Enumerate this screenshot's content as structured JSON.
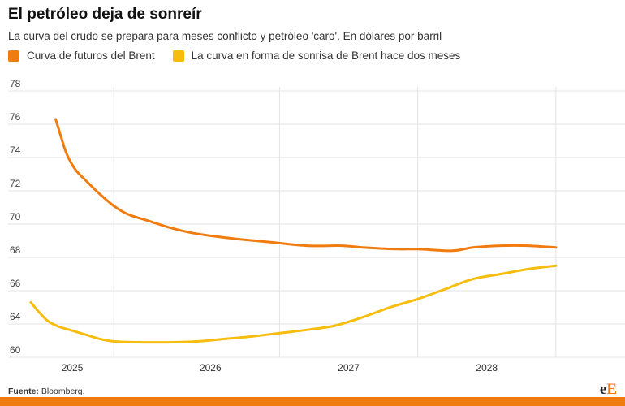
{
  "chart_data": {
    "type": "line",
    "title": "El petróleo deja de sonreír",
    "subtitle": "La curva del crudo se prepara para meses conflicto y petróleo 'caro'. En dólares por barril",
    "y_tick_labels": [
      "60",
      "64",
      "66",
      "68",
      "70",
      "72",
      "74",
      "76",
      "78"
    ],
    "x_tick_labels": [
      {
        "label": "2025",
        "x": 2025.0
      },
      {
        "label": "2026",
        "x": 2026.0
      },
      {
        "label": "2027",
        "x": 2027.0
      },
      {
        "label": "2028",
        "x": 2028.0
      }
    ],
    "xlim": [
      2024.7,
      2029.0
    ],
    "year_gridlines": [
      2025.3,
      2026.5,
      2027.5,
      2028.5
    ],
    "legend_placement": "top-left",
    "grid": true,
    "series": [
      {
        "name": "Curva de futuros del Brent",
        "color": "#f07c0f",
        "points": [
          [
            2024.88,
            76.3
          ],
          [
            2024.92,
            75.2
          ],
          [
            2024.96,
            74.2
          ],
          [
            2025.02,
            73.3
          ],
          [
            2025.1,
            72.6
          ],
          [
            2025.2,
            71.8
          ],
          [
            2025.3,
            71.1
          ],
          [
            2025.4,
            70.6
          ],
          [
            2025.55,
            70.2
          ],
          [
            2025.7,
            69.8
          ],
          [
            2025.85,
            69.5
          ],
          [
            2026.0,
            69.3
          ],
          [
            2026.2,
            69.1
          ],
          [
            2026.45,
            68.9
          ],
          [
            2026.7,
            68.7
          ],
          [
            2026.95,
            68.7
          ],
          [
            2027.1,
            68.6
          ],
          [
            2027.35,
            68.5
          ],
          [
            2027.5,
            68.5
          ],
          [
            2027.75,
            68.4
          ],
          [
            2027.9,
            68.6
          ],
          [
            2028.1,
            68.7
          ],
          [
            2028.3,
            68.7
          ],
          [
            2028.5,
            68.6
          ]
        ]
      },
      {
        "name": "La curva en forma de sonrisa de Brent hace dos meses",
        "color": "#f6bd0e",
        "points": [
          [
            2024.7,
            65.3
          ],
          [
            2024.75,
            64.8
          ],
          [
            2024.82,
            64.2
          ],
          [
            2024.9,
            63.7
          ],
          [
            2025.0,
            63.2
          ],
          [
            2025.1,
            62.7
          ],
          [
            2025.2,
            62.2
          ],
          [
            2025.3,
            61.9
          ],
          [
            2025.5,
            61.8
          ],
          [
            2025.7,
            61.8
          ],
          [
            2025.9,
            61.9
          ],
          [
            2026.1,
            62.2
          ],
          [
            2026.3,
            62.5
          ],
          [
            2026.5,
            62.9
          ],
          [
            2026.7,
            63.3
          ],
          [
            2026.9,
            63.8
          ],
          [
            2027.1,
            64.4
          ],
          [
            2027.3,
            65.0
          ],
          [
            2027.5,
            65.5
          ],
          [
            2027.7,
            66.1
          ],
          [
            2027.9,
            66.7
          ],
          [
            2028.1,
            67.0
          ],
          [
            2028.3,
            67.3
          ],
          [
            2028.5,
            67.5
          ]
        ]
      }
    ]
  },
  "source": {
    "label": "Fuente:",
    "text": "Bloomberg."
  },
  "logo": {
    "part1": "e",
    "part2": "E"
  }
}
